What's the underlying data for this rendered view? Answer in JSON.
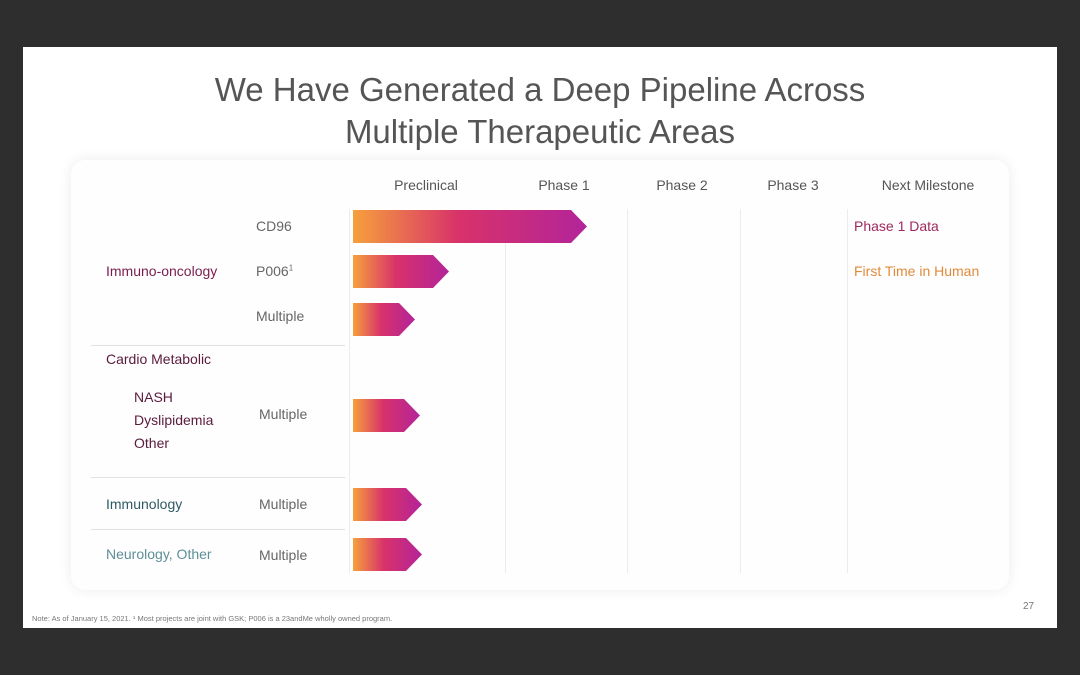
{
  "slide": {
    "title_line1": "We Have Generated a Deep Pipeline Across",
    "title_line2": "Multiple Therapeutic Areas",
    "page_number": "27",
    "footnote": "Note: As of January 15, 2021. ¹ Most projects are joint with GSK; P006 is a 23andMe wholly owned program."
  },
  "colors": {
    "bar_gradient_start": "#f6a03c",
    "bar_gradient_mid": "#d8326a",
    "bar_gradient_end": "#b3249a",
    "immuno_oncology": "#7a1d4e",
    "cardio_metabolic": "#5b1a3c",
    "immunology": "#2f5a63",
    "neurology": "#5e8f99",
    "milestone_phase1": "#a0285f",
    "milestone_first_human": "#e08a3a"
  },
  "pipeline": {
    "stages": [
      "Preclinical",
      "Phase 1",
      "Phase 2",
      "Phase 3",
      "Next Milestone"
    ],
    "areas": {
      "immuno_oncology": "Immuno-oncology",
      "cardio_metabolic": "Cardio Metabolic",
      "cardio_sub": [
        "NASH",
        "Dyslipidemia",
        "Other"
      ],
      "immunology": "Immunology",
      "neurology": "Neurology, Other"
    },
    "programs": [
      {
        "name": "CD96",
        "superscript": "",
        "progress": 0.98,
        "milestone": "Phase 1 Data"
      },
      {
        "name": "P006",
        "superscript": "1",
        "progress": 0.4,
        "milestone": "First Time in Human"
      },
      {
        "name": "Multiple",
        "superscript": "",
        "progress": 0.26,
        "milestone": ""
      },
      {
        "name": "Multiple",
        "superscript": "",
        "progress": 0.28,
        "milestone": ""
      },
      {
        "name": "Multiple",
        "superscript": "",
        "progress": 0.29,
        "milestone": ""
      },
      {
        "name": "Multiple",
        "superscript": "",
        "progress": 0.29,
        "milestone": ""
      }
    ]
  }
}
